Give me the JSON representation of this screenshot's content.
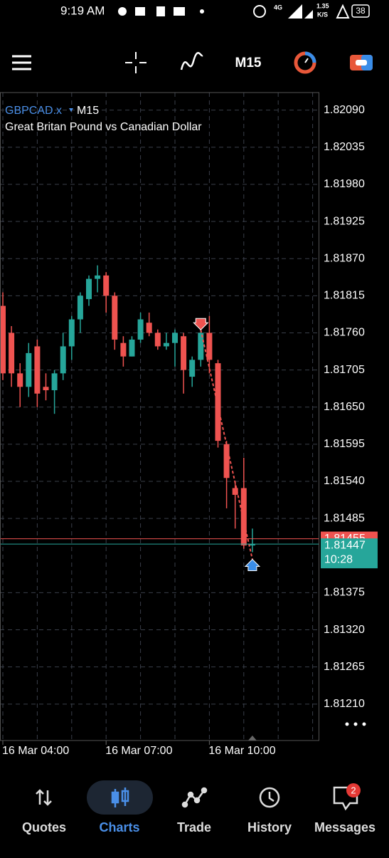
{
  "status_bar": {
    "time": "9:19 AM",
    "network": "4G",
    "speed": "1.35",
    "speed_unit": "K/S",
    "battery": "38"
  },
  "toolbar": {
    "timeframe": "M15"
  },
  "chart": {
    "symbol": "GBPCAD.x",
    "timeframe": "M15",
    "description": "Great Britan Pound vs Canadian Dollar",
    "ylim": [
      1.81156,
      1.82116
    ],
    "yticks": [
      {
        "value": 1.8209,
        "label": "1.82090"
      },
      1.82035,
      {
        "value": 1.8198,
        "label": "1.81980"
      },
      1.81925,
      {
        "value": 1.8187,
        "label": "1.81870"
      },
      1.81815,
      {
        "value": 1.8176,
        "label": "1.81760"
      },
      1.81705,
      {
        "value": 1.8165,
        "label": "1.81650"
      },
      1.81595,
      {
        "value": 1.8154,
        "label": "1.81540"
      },
      1.81485,
      1.81375,
      {
        "value": 1.8132,
        "label": "1.81320"
      },
      1.81265,
      {
        "value": 1.8121,
        "label": "1.81210"
      }
    ],
    "xticks": [
      {
        "value": 0,
        "label": "16 Mar 04:00"
      },
      {
        "value": 12,
        "label": "16 Mar 07:00"
      },
      {
        "value": 24,
        "label": "16 Mar 10:00"
      }
    ],
    "bull_color": "#26a69a",
    "bear_color": "#ef5350",
    "candles": [
      {
        "open": 1.818,
        "high": 1.8182,
        "low": 1.8169,
        "close": 1.817
      },
      {
        "open": 1.8176,
        "high": 1.8177,
        "low": 1.8168,
        "close": 1.817
      },
      {
        "open": 1.817,
        "high": 1.81715,
        "low": 1.8165,
        "close": 1.8168
      },
      {
        "open": 1.8168,
        "high": 1.81745,
        "low": 1.81665,
        "close": 1.8173
      },
      {
        "open": 1.8174,
        "high": 1.8175,
        "low": 1.8165,
        "close": 1.8167
      },
      {
        "open": 1.8168,
        "high": 1.817,
        "low": 1.8166,
        "close": 1.81675
      },
      {
        "open": 1.81675,
        "high": 1.81705,
        "low": 1.8164,
        "close": 1.817
      },
      {
        "open": 1.817,
        "high": 1.8176,
        "low": 1.8169,
        "close": 1.8174
      },
      {
        "open": 1.8174,
        "high": 1.81785,
        "low": 1.8172,
        "close": 1.8178
      },
      {
        "open": 1.8178,
        "high": 1.8182,
        "low": 1.8176,
        "close": 1.81815
      },
      {
        "open": 1.8181,
        "high": 1.81845,
        "low": 1.818,
        "close": 1.8184
      },
      {
        "open": 1.8184,
        "high": 1.8186,
        "low": 1.8182,
        "close": 1.81845
      },
      {
        "open": 1.81845,
        "high": 1.8185,
        "low": 1.8179,
        "close": 1.81815
      },
      {
        "open": 1.81815,
        "high": 1.8182,
        "low": 1.81735,
        "close": 1.8175
      },
      {
        "open": 1.81745,
        "high": 1.81755,
        "low": 1.8171,
        "close": 1.81725
      },
      {
        "open": 1.81725,
        "high": 1.81755,
        "low": 1.81725,
        "close": 1.8175
      },
      {
        "open": 1.8175,
        "high": 1.8179,
        "low": 1.81745,
        "close": 1.8178
      },
      {
        "open": 1.81775,
        "high": 1.8179,
        "low": 1.81755,
        "close": 1.8176
      },
      {
        "open": 1.8176,
        "high": 1.81765,
        "low": 1.81735,
        "close": 1.8174
      },
      {
        "open": 1.8174,
        "high": 1.8176,
        "low": 1.81735,
        "close": 1.81745
      },
      {
        "open": 1.81745,
        "high": 1.81765,
        "low": 1.8171,
        "close": 1.8176
      },
      {
        "open": 1.81755,
        "high": 1.8176,
        "low": 1.8167,
        "close": 1.81705
      },
      {
        "open": 1.81695,
        "high": 1.81725,
        "low": 1.8168,
        "close": 1.8172
      },
      {
        "open": 1.8172,
        "high": 1.81775,
        "low": 1.8171,
        "close": 1.8176
      },
      {
        "open": 1.8176,
        "high": 1.81785,
        "low": 1.817,
        "close": 1.8172
      },
      {
        "open": 1.81715,
        "high": 1.8172,
        "low": 1.8159,
        "close": 1.816
      },
      {
        "open": 1.81595,
        "high": 1.816,
        "low": 1.815,
        "close": 1.81545
      },
      {
        "open": 1.8153,
        "high": 1.8154,
        "low": 1.8147,
        "close": 1.8152
      },
      {
        "open": 1.8153,
        "high": 1.81575,
        "low": 1.8144,
        "close": 1.81445
      },
      {
        "open": 1.81445,
        "high": 1.8147,
        "low": 1.81435,
        "close": 1.81447
      }
    ],
    "bid": 1.81455,
    "ask": 1.81447,
    "ask_time": "10:28"
  },
  "nav": {
    "items": [
      "Quotes",
      "Charts",
      "Trade",
      "History",
      "Messages"
    ],
    "messages_badge": "2"
  }
}
